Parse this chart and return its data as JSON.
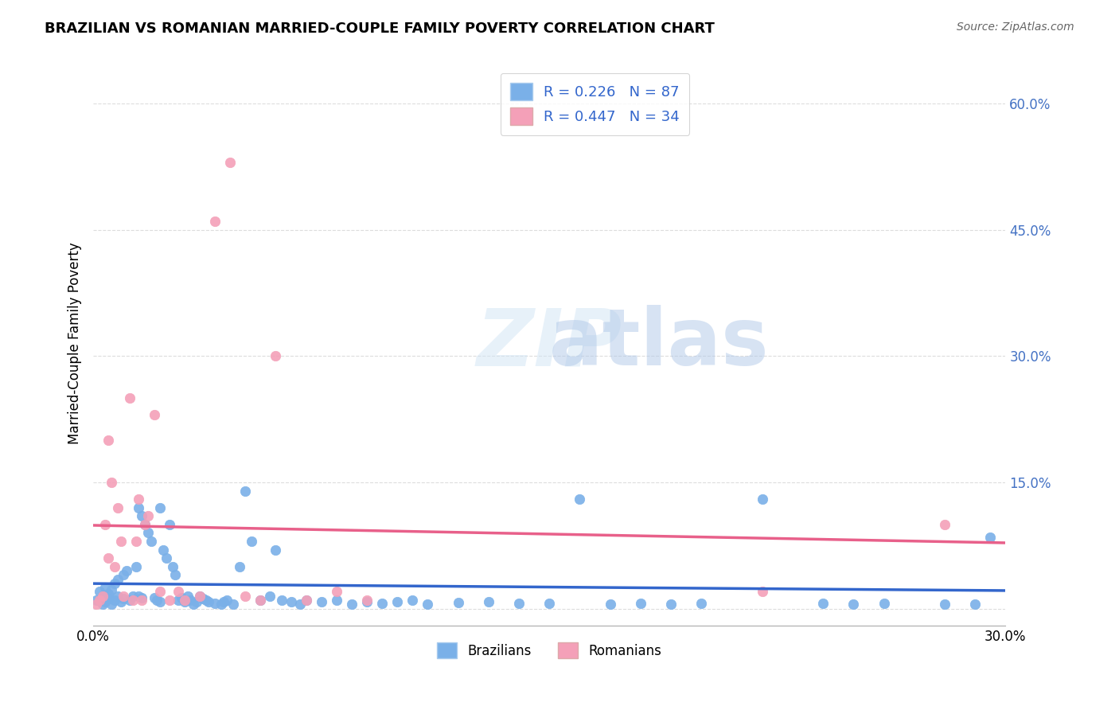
{
  "title": "BRAZILIAN VS ROMANIAN MARRIED-COUPLE FAMILY POVERTY CORRELATION CHART",
  "source": "Source: ZipAtlas.com",
  "xlabel_bottom": "",
  "ylabel": "Married-Couple Family Poverty",
  "xmin": 0.0,
  "xmax": 0.3,
  "ymin": -0.02,
  "ymax": 0.65,
  "xticks": [
    0.0,
    0.05,
    0.1,
    0.15,
    0.2,
    0.25,
    0.3
  ],
  "xtick_labels": [
    "0.0%",
    "",
    "",
    "",
    "",
    "",
    "30.0%"
  ],
  "ytick_positions": [
    0.0,
    0.15,
    0.3,
    0.45,
    0.6
  ],
  "ytick_labels": [
    "",
    "15.0%",
    "30.0%",
    "45.0%",
    "60.0%"
  ],
  "brazilian_color": "#7ab0e8",
  "romanian_color": "#f4a0b8",
  "trendline_blue": "#3366cc",
  "trendline_pink": "#e8608a",
  "watermark": "ZIPat las",
  "legend_R_blue": "R = 0.226",
  "legend_N_blue": "N = 87",
  "legend_R_pink": "R = 0.447",
  "legend_N_pink": "N = 34",
  "brazilian_x": [
    0.001,
    0.002,
    0.003,
    0.003,
    0.004,
    0.004,
    0.005,
    0.005,
    0.006,
    0.006,
    0.007,
    0.007,
    0.008,
    0.008,
    0.009,
    0.01,
    0.01,
    0.011,
    0.012,
    0.013,
    0.014,
    0.015,
    0.015,
    0.016,
    0.016,
    0.017,
    0.018,
    0.019,
    0.02,
    0.021,
    0.022,
    0.022,
    0.023,
    0.024,
    0.025,
    0.026,
    0.027,
    0.028,
    0.029,
    0.03,
    0.031,
    0.032,
    0.033,
    0.034,
    0.035,
    0.036,
    0.037,
    0.038,
    0.04,
    0.042,
    0.043,
    0.044,
    0.046,
    0.048,
    0.05,
    0.052,
    0.055,
    0.058,
    0.06,
    0.062,
    0.065,
    0.068,
    0.07,
    0.075,
    0.08,
    0.085,
    0.09,
    0.095,
    0.1,
    0.105,
    0.11,
    0.12,
    0.13,
    0.14,
    0.15,
    0.16,
    0.17,
    0.18,
    0.19,
    0.2,
    0.22,
    0.24,
    0.25,
    0.26,
    0.28,
    0.29,
    0.295
  ],
  "brazilian_y": [
    0.01,
    0.02,
    0.005,
    0.015,
    0.025,
    0.008,
    0.012,
    0.018,
    0.022,
    0.005,
    0.01,
    0.03,
    0.015,
    0.035,
    0.008,
    0.04,
    0.012,
    0.045,
    0.01,
    0.015,
    0.05,
    0.015,
    0.12,
    0.013,
    0.11,
    0.1,
    0.09,
    0.08,
    0.013,
    0.01,
    0.008,
    0.12,
    0.07,
    0.06,
    0.1,
    0.05,
    0.04,
    0.01,
    0.013,
    0.008,
    0.015,
    0.01,
    0.005,
    0.008,
    0.015,
    0.012,
    0.01,
    0.008,
    0.006,
    0.005,
    0.008,
    0.01,
    0.005,
    0.05,
    0.14,
    0.08,
    0.01,
    0.015,
    0.07,
    0.01,
    0.008,
    0.005,
    0.01,
    0.008,
    0.01,
    0.005,
    0.008,
    0.006,
    0.008,
    0.01,
    0.005,
    0.007,
    0.008,
    0.006,
    0.006,
    0.13,
    0.005,
    0.006,
    0.005,
    0.006,
    0.13,
    0.006,
    0.005,
    0.006,
    0.005,
    0.005,
    0.085
  ],
  "romanian_x": [
    0.001,
    0.002,
    0.003,
    0.004,
    0.005,
    0.005,
    0.006,
    0.007,
    0.008,
    0.009,
    0.01,
    0.012,
    0.013,
    0.014,
    0.015,
    0.016,
    0.017,
    0.018,
    0.02,
    0.022,
    0.025,
    0.028,
    0.03,
    0.035,
    0.04,
    0.045,
    0.05,
    0.055,
    0.06,
    0.07,
    0.08,
    0.09,
    0.22,
    0.28
  ],
  "romanian_y": [
    0.005,
    0.01,
    0.015,
    0.1,
    0.2,
    0.06,
    0.15,
    0.05,
    0.12,
    0.08,
    0.015,
    0.25,
    0.01,
    0.08,
    0.13,
    0.01,
    0.1,
    0.11,
    0.23,
    0.02,
    0.01,
    0.02,
    0.01,
    0.015,
    0.46,
    0.53,
    0.015,
    0.01,
    0.3,
    0.01,
    0.02,
    0.01,
    0.02,
    0.1
  ],
  "background_color": "#ffffff",
  "grid_color": "#dddddd"
}
